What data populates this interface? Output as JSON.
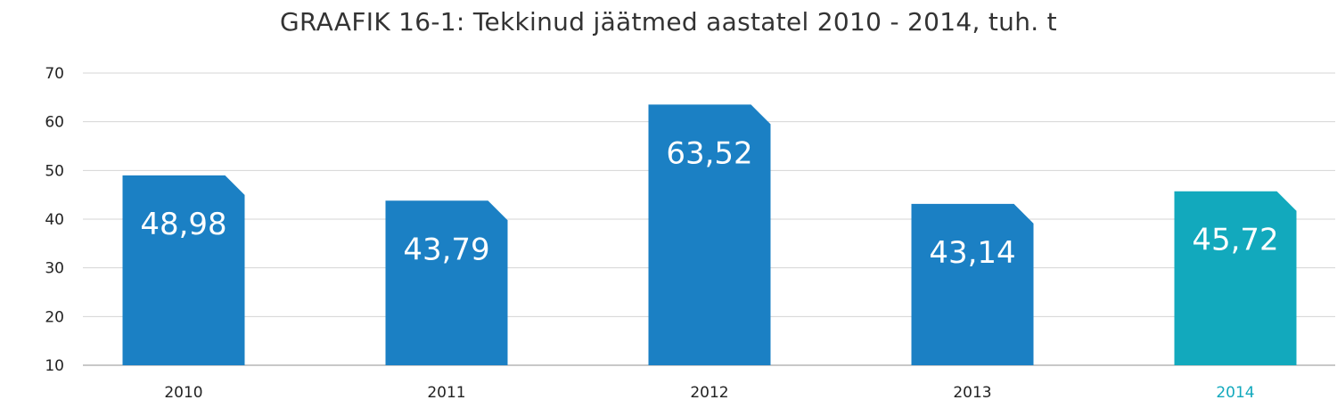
{
  "chart_data": {
    "type": "bar",
    "title": "GRAAFIK 16-1: Tekkinud jäätmed aastatel 2010 - 2014, tuh. t",
    "xlabel": "",
    "ylabel": "",
    "categories": [
      "2010",
      "2011",
      "2012",
      "2013",
      "2014"
    ],
    "values": [
      48.98,
      43.79,
      63.52,
      43.14,
      45.72
    ],
    "data_labels": [
      "48,98",
      "43,79",
      "63,52",
      "43,14",
      "45,72"
    ],
    "y_ticks": [
      "10",
      "20",
      "30",
      "40",
      "50",
      "60",
      "70"
    ],
    "ylim": [
      10,
      70
    ],
    "grid": true,
    "legend": "none",
    "colors": {
      "bar": "#1b80c4",
      "highlight_bar": "#12a9bd",
      "highlight_label": "#12a9bd",
      "label": "#222222",
      "data_label": "#ffffff"
    },
    "highlight_index": 4
  }
}
